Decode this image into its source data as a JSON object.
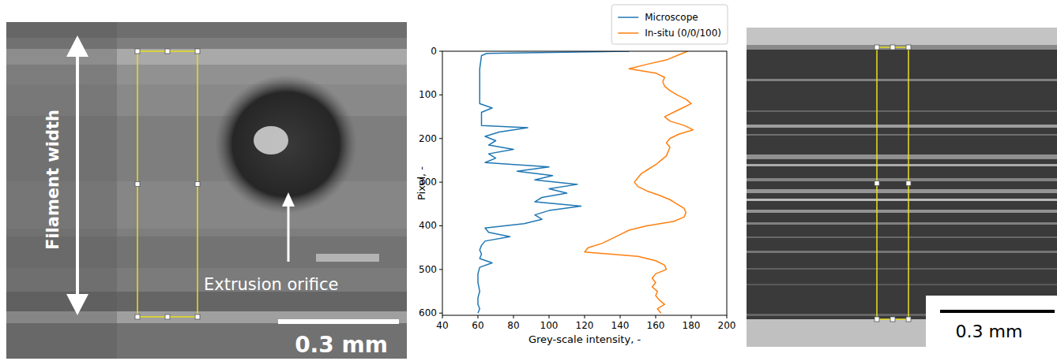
{
  "chart_data": {
    "type": "line",
    "xlabel": "Grey-scale intensity, -",
    "ylabel": "Pixel, -",
    "xlim": [
      40,
      200
    ],
    "xticks": [
      40,
      60,
      80,
      100,
      120,
      140,
      160,
      180,
      200
    ],
    "ylim": [
      605,
      0
    ],
    "yticks": [
      0,
      100,
      200,
      300,
      400,
      500,
      600
    ],
    "grid": false,
    "legend": "upper right",
    "series": [
      {
        "name": "Microscope",
        "color": "#1f77b4",
        "x": [
          145,
          65,
          62,
          61,
          61,
          61,
          68,
          62,
          62,
          62,
          88,
          72,
          64,
          70,
          66,
          80,
          66,
          70,
          64,
          100,
          82,
          102,
          92,
          116,
          100,
          110,
          96,
          92,
          118,
          100,
          92,
          96,
          86,
          64,
          66,
          78,
          64,
          62,
          61,
          62,
          61,
          68,
          61,
          60,
          60,
          61,
          60,
          60,
          61,
          60
        ],
        "values": [
          0,
          5,
          10,
          40,
          80,
          120,
          130,
          140,
          150,
          170,
          175,
          185,
          195,
          205,
          215,
          225,
          235,
          245,
          255,
          265,
          275,
          285,
          295,
          305,
          315,
          325,
          335,
          345,
          355,
          365,
          375,
          385,
          395,
          405,
          415,
          425,
          435,
          445,
          455,
          465,
          475,
          485,
          495,
          510,
          530,
          550,
          565,
          580,
          590,
          600
        ]
      },
      {
        "name": "In-situ (0/0/100)",
        "color": "#ff7f0e",
        "x": [
          178,
          172,
          166,
          155,
          145,
          160,
          165,
          164,
          165,
          168,
          172,
          177,
          180,
          175,
          170,
          165,
          168,
          176,
          181,
          173,
          168,
          166,
          168,
          167,
          166,
          163,
          160,
          156,
          152,
          150,
          148,
          150,
          155,
          162,
          168,
          172,
          176,
          177,
          176,
          170,
          155,
          145,
          140,
          135,
          130,
          122,
          120,
          150,
          160,
          165,
          166,
          160,
          158,
          160,
          158,
          161,
          160,
          162,
          165,
          161,
          163
        ],
        "values": [
          0,
          10,
          20,
          30,
          40,
          50,
          60,
          70,
          80,
          90,
          100,
          110,
          120,
          130,
          140,
          150,
          160,
          170,
          180,
          190,
          200,
          210,
          220,
          230,
          240,
          250,
          260,
          270,
          280,
          290,
          300,
          310,
          320,
          330,
          340,
          350,
          360,
          370,
          380,
          390,
          400,
          410,
          420,
          430,
          440,
          450,
          460,
          470,
          480,
          490,
          500,
          510,
          520,
          530,
          540,
          550,
          560,
          570,
          580,
          590,
          600
        ]
      }
    ]
  },
  "left_image": {
    "width_label": "Filament width",
    "orifice_label": "Extrusion orifice",
    "scale_label": "0.3 mm"
  },
  "right_image": {
    "scale_label": "0.3 mm"
  }
}
